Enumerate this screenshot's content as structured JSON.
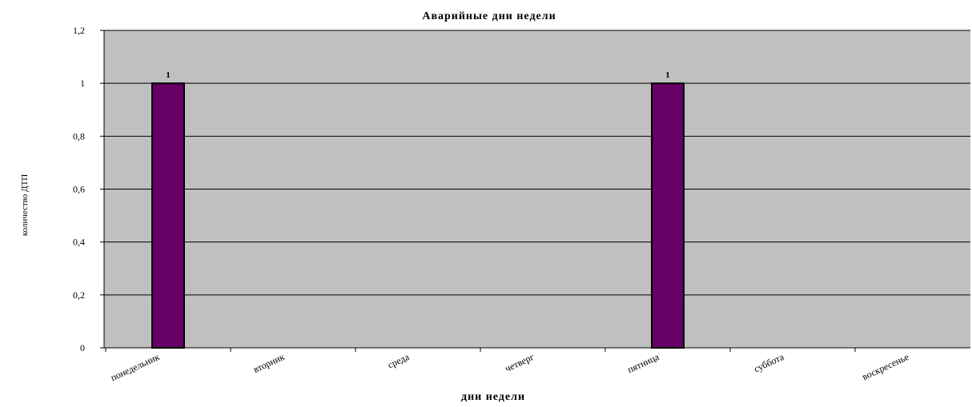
{
  "chart_data": {
    "type": "bar",
    "title": "Аварийные дни недели",
    "xlabel": "дни недели",
    "ylabel": "количество ДТП",
    "categories": [
      "понедельник",
      "вторник",
      "среда",
      "четверг",
      "пятница",
      "суббота",
      "воскресенье"
    ],
    "values": [
      1,
      0,
      0,
      0,
      1,
      0,
      0
    ],
    "data_labels": [
      "1",
      "",
      "",
      "",
      "1",
      "",
      ""
    ],
    "ylim": [
      0,
      1.2
    ],
    "yticks": [
      "0",
      "0,2",
      "0,4",
      "0,6",
      "0,8",
      "1",
      "1,2"
    ],
    "grid": true,
    "legend": "none",
    "colors": {
      "plot_background": "#c0c0c0",
      "bar_fill": "#660066",
      "bar_stroke": "#000000",
      "gridline": "#000000"
    }
  }
}
